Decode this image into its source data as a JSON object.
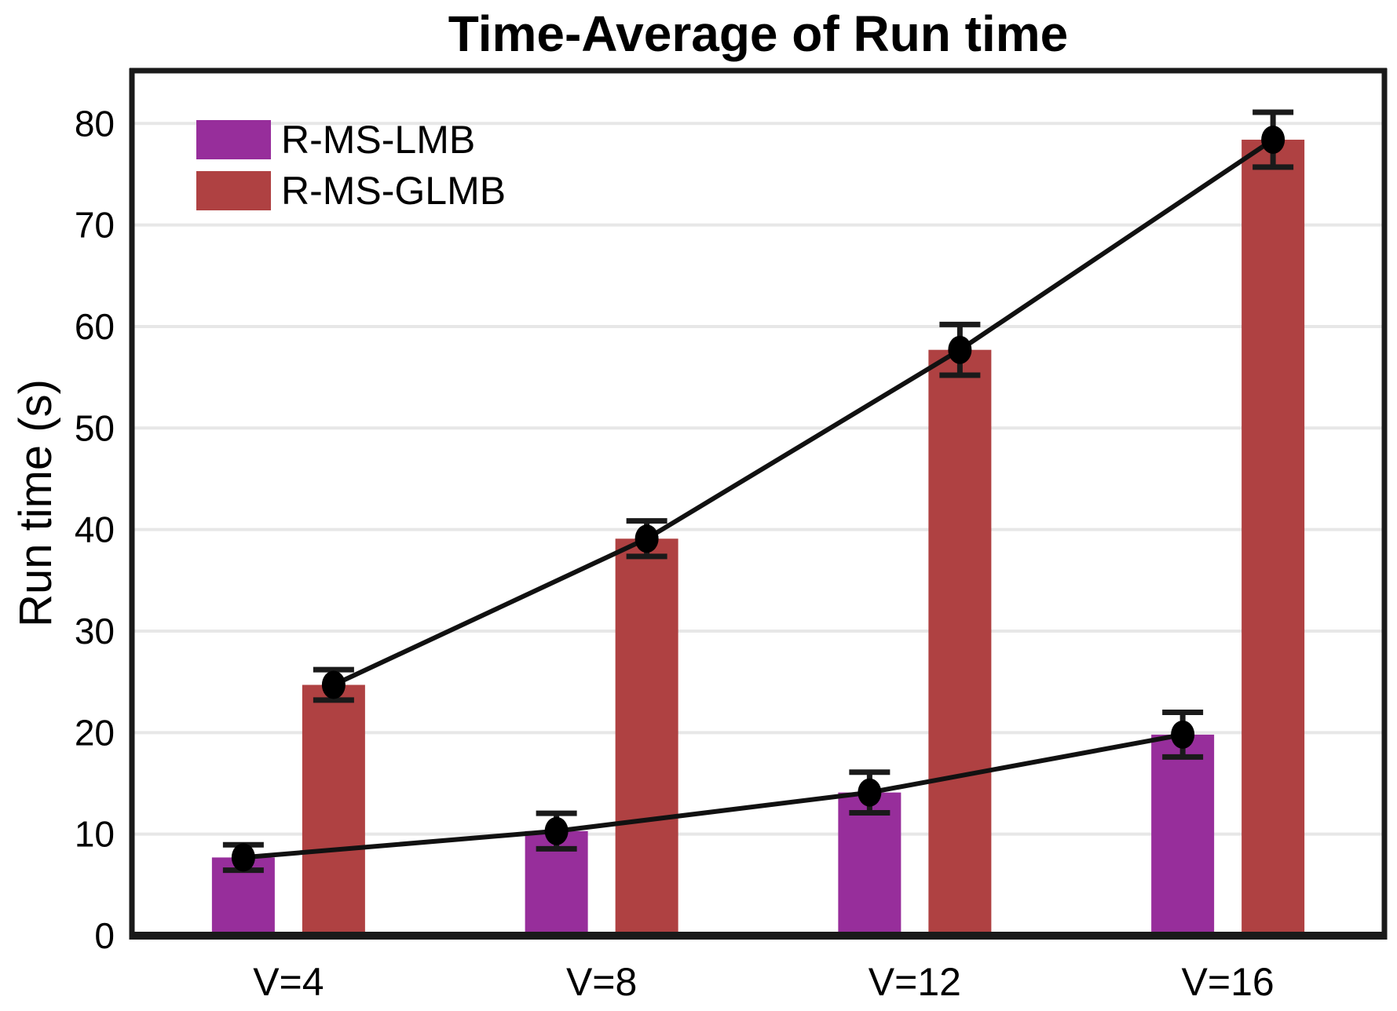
{
  "figure": {
    "background": "#ffffff",
    "text_color": "#000000"
  },
  "chart_data": {
    "type": "bar",
    "title": "Time-Average of Run time",
    "xlabel": "",
    "ylabel": "Run time (s)",
    "categories": [
      "V=4",
      "V=8",
      "V=12",
      "V=16"
    ],
    "series": [
      {
        "name": "R-MS-LMB",
        "color": "#972E9B",
        "values": [
          7.7,
          10.3,
          14.1,
          19.8
        ],
        "errors": [
          1.25,
          1.75,
          2.0,
          2.2
        ]
      },
      {
        "name": "R-MS-GLMB",
        "color": "#AF4142",
        "values": [
          24.7,
          39.1,
          57.7,
          78.4
        ],
        "errors": [
          1.5,
          1.75,
          2.5,
          2.7
        ]
      }
    ],
    "overlay_trend_lines": true,
    "line_color": "#111111",
    "marker": "filled-circle",
    "marker_color": "#000000",
    "error_bar_color": "#1a1a1a",
    "yticks": [
      0,
      10,
      20,
      30,
      40,
      50,
      60,
      70,
      80
    ],
    "ylim": [
      0,
      85.2
    ],
    "grid": "horizontal",
    "gridline_color": "#E7E7E7",
    "axis_color": "#1a1a1a",
    "legend_position": "top-left"
  }
}
